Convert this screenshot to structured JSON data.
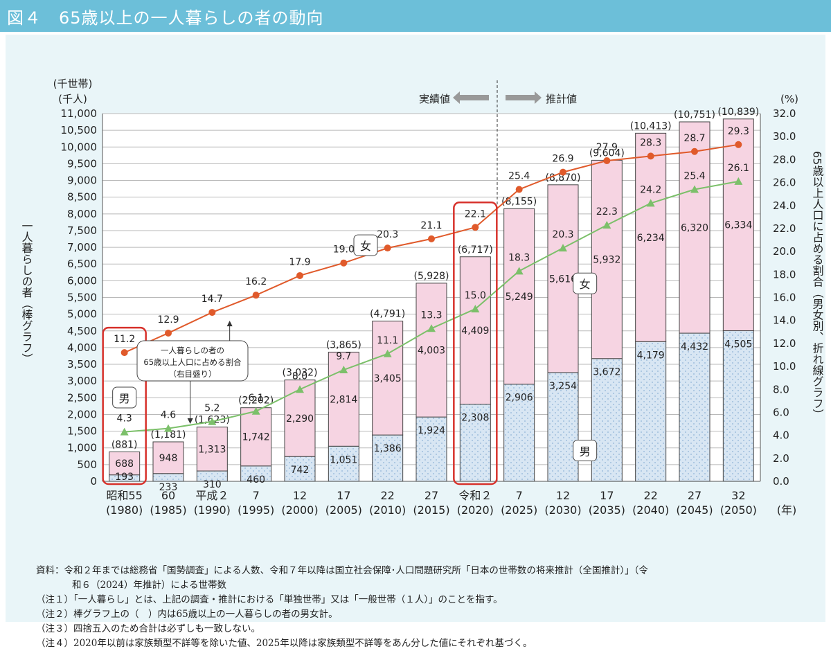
{
  "header": {
    "title": "図４　65歳以上の一人暮らしの者の動向"
  },
  "chart_data": {
    "type": "bar",
    "title": "65歳以上の一人暮らしの者の動向",
    "categories": [
      "昭和55",
      "60",
      "平成２",
      "7",
      "12",
      "17",
      "22",
      "27",
      "令和２",
      "7",
      "12",
      "17",
      "22",
      "27",
      "32"
    ],
    "categories_sub": [
      "(1980)",
      "(1985)",
      "(1990)",
      "(1995)",
      "(2000)",
      "(2005)",
      "(2010)",
      "(2015)",
      "(2020)",
      "(2025)",
      "(2030)",
      "(2035)",
      "(2040)",
      "(2045)",
      "(2050)"
    ],
    "x_unit": "(年)",
    "series": [
      {
        "name": "男",
        "values": [
          193,
          233,
          310,
          460,
          742,
          1051,
          1386,
          1924,
          2308,
          2906,
          3254,
          3672,
          4179,
          4432,
          4505
        ],
        "color": "#d8e6f3"
      },
      {
        "name": "女",
        "values": [
          688,
          948,
          1313,
          1742,
          2290,
          2814,
          3405,
          4003,
          4409,
          5249,
          5616,
          5932,
          6234,
          6320,
          6334
        ],
        "color": "#f6d4e2"
      }
    ],
    "totals": [
      881,
      1181,
      1623,
      2202,
      3032,
      3865,
      4791,
      5928,
      6717,
      8155,
      8870,
      9604,
      10413,
      10751,
      10839
    ],
    "totals_labels": [
      "(881)",
      "(1,181)",
      "(1,623)",
      "(2,202)",
      "(3,032)",
      "(3,865)",
      "(4,791)",
      "(5,928)",
      "(6,717)",
      "(8,155)",
      "(8,870)",
      "(9,604)",
      "(10,413)",
      "(10,751)",
      "(10,839)"
    ],
    "lines": [
      {
        "name": "女",
        "axis": "right",
        "marker": "circle",
        "color": "#e05a2b",
        "values": [
          11.2,
          12.9,
          14.7,
          16.2,
          17.9,
          19.0,
          20.3,
          21.1,
          22.1,
          25.4,
          26.9,
          27.9,
          28.3,
          28.7,
          29.3
        ]
      },
      {
        "name": "男",
        "axis": "right",
        "marker": "triangle",
        "color": "#7cc06a",
        "values": [
          4.3,
          4.6,
          5.2,
          6.1,
          8.0,
          9.7,
          11.1,
          13.3,
          15.0,
          18.3,
          20.3,
          22.3,
          24.2,
          25.4,
          26.1
        ]
      }
    ],
    "y_left": {
      "unit_top": "(千世帯)",
      "unit_bottom": "(千人)",
      "label": "一人暮らしの者（棒グラフ）",
      "range": [
        0,
        11000
      ],
      "ticks": [
        "0",
        "500",
        "1,000",
        "1,500",
        "2,000",
        "2,500",
        "3,000",
        "3,500",
        "4,000",
        "4,500",
        "5,000",
        "5,500",
        "6,000",
        "6,500",
        "7,000",
        "7,500",
        "8,000",
        "8,500",
        "9,000",
        "9,500",
        "10,000",
        "10,500",
        "11,000"
      ]
    },
    "y_right": {
      "unit": "(%)",
      "label": "65歳以上人口に占める割合（男女別、折れ線グラフ）",
      "range": [
        0,
        32
      ],
      "ticks": [
        "0.0",
        "2.0",
        "4.0",
        "6.0",
        "8.0",
        "10.0",
        "12.0",
        "14.0",
        "16.0",
        "18.0",
        "20.0",
        "22.0",
        "24.0",
        "26.0",
        "28.0",
        "30.0",
        "32.0"
      ]
    },
    "annotations": {
      "actual": "実績値",
      "projected": "推計値",
      "callout": [
        "一人暮らしの者の",
        "65歳以上人口に占める割合",
        "（右目盛り）"
      ],
      "labels": {
        "female_line": "女",
        "male_line": "男",
        "female_bar": "女",
        "male_bar": "男"
      }
    }
  },
  "notes": [
    "資料：令和２年までは総務省「国勢調査」による人数、令和７年以降は国立社会保障･人口問題研究所「日本の世帯数の将来推計（全国推計）」（令",
    "和６（2024）年推計）による世帯数",
    "（注１）「一人暮らし」とは、上記の調査・推計における「単独世帯」又は「一般世帯（１人）」のことを指す。",
    "（注２）棒グラフ上の（　）内は65歳以上の一人暮らしの者の男女計。",
    "（注３）四捨五入のため合計は必ずしも一致しない。",
    "（注４）2020年以前は家族類型不詳等を除いた値、2025年以降は家族類型不詳等をあん分した値にそれぞれ基づく。"
  ],
  "colors": {
    "header_bg": "#6cbfd9",
    "panel_bg": "#e9f5f8",
    "female_line": "#e05a2b",
    "male_line": "#7cc06a",
    "highlight": "#d7312b"
  }
}
